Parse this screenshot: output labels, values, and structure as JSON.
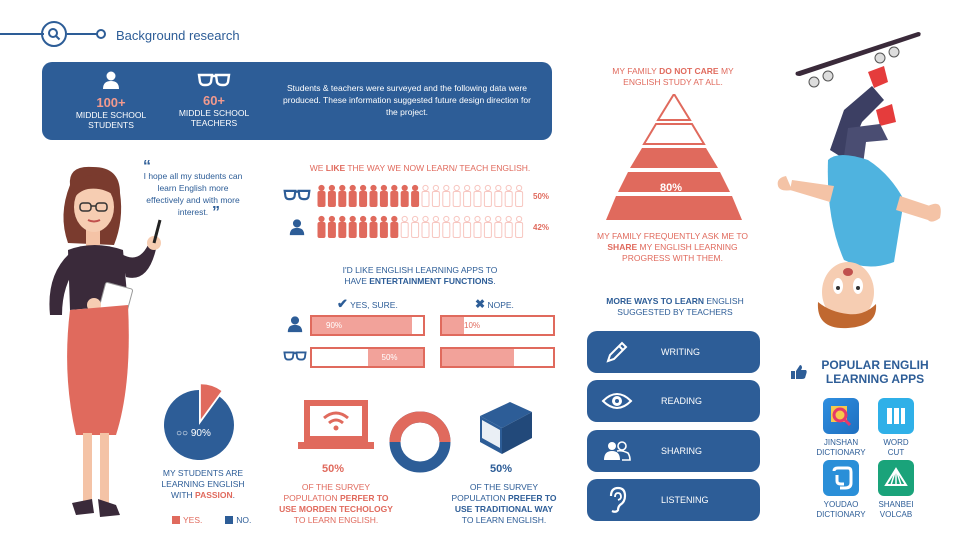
{
  "header": {
    "title": "Background research"
  },
  "banner": {
    "students_count": "100+",
    "students_label_1": "MIDDLE SCHOOL",
    "students_label_2": "STUDENTS",
    "teachers_count": "60+",
    "teachers_label_1": "MIDDLE SCHOOL",
    "teachers_label_2": "TEACHERS",
    "description": "Students & teachers were surveyed and the following data were produced. These information suggested future design direction for the project."
  },
  "quote": {
    "text": "I hope all my students can learn English more effectively and with more interest.",
    "open": "“",
    "close": "”"
  },
  "like": {
    "title_pre": "WE ",
    "title_em": "LIKE",
    "title_post": " THE WAY WE NOW LEARN/ TEACH ENGLISH.",
    "teachers_pct": "50%",
    "students_pct": "42%",
    "teachers_value": 0.5,
    "students_value": 0.42
  },
  "apps_want": {
    "title_1": "I'D LIKE ENGLISH LEARNING APPS TO",
    "title_2_pre": "HAVE ",
    "title_2_em": "ENTERTAINMENT FUNCTIONS",
    "title_2_post": ".",
    "yes_label": "YES, SURE.",
    "no_label": "NOPE.",
    "students_yes": "90%",
    "students_no": "10%",
    "teachers_yes": "50%",
    "teachers_no": "50%",
    "students_yes_value": 0.9,
    "students_no_value": 0.1,
    "teachers_yes_value": 0.5,
    "teachers_no_value": 0.5
  },
  "pie": {
    "percent": "90%",
    "value": 0.9,
    "label_1": "MY STUDENTS ARE",
    "label_2": "LEARNING ENGLISH",
    "label_3_pre": "WITH ",
    "label_3_em": "PASSION",
    "label_3_post": ".",
    "legend_yes": "YES.",
    "legend_no": "NO."
  },
  "computer_stat": {
    "percent": "50%",
    "line_1": "OF THE SURVEY",
    "line_2_pre": "POPULATION ",
    "line_2_em": "PERFER TO",
    "line_3": "USE MORDEN TECHOLOGY",
    "line_4": "TO LEARN ENGLISH."
  },
  "book_stat": {
    "percent": "50%",
    "line_1": "OF THE SURVEY",
    "line_2_pre": "POPULATION ",
    "line_2_em": "PREFER TO",
    "line_3": "USE TRADITIONAL WAY",
    "line_4": "TO LEARN ENGLISH."
  },
  "family": {
    "top_1_pre": "MY FAMILY ",
    "top_1_em": "DO NOT CARE",
    "top_1_post": " MY",
    "top_2": "ENGLISH STUDY AT ALL.",
    "pct": "80%",
    "value": 0.8,
    "bot_1": "MY FAMILY FREQUENTLY ASK ME TO",
    "bot_2_em": "SHARE",
    "bot_2_post": " MY ENGLISH LEARNING",
    "bot_3": "PROGRESS WITH THEM."
  },
  "ways": {
    "title_em": "MORE WAYS TO LEARN",
    "title_post": " ENGLISH",
    "title_2": "SUGGESTED BY TEACHERS",
    "items": [
      {
        "label": "WRITING",
        "icon": "pencil-icon"
      },
      {
        "label": "READING",
        "icon": "eye-icon"
      },
      {
        "label": "SHARING",
        "icon": "people-icon"
      },
      {
        "label": "LISTENING",
        "icon": "ear-icon"
      }
    ]
  },
  "popular": {
    "title_1": "POPULAR ENGLIH",
    "title_2": "LEARNING APPS",
    "apps": [
      {
        "line_1": "JINSHAN",
        "line_2": "DICTIONARY",
        "color": "#2f8fe0"
      },
      {
        "line_1": "WORD",
        "line_2": "CUT",
        "color": "#2fb0e8"
      },
      {
        "line_1": "YOUDAO",
        "line_2": "DICTIONARY",
        "color": "#2a8fd8"
      },
      {
        "line_1": "SHANBEI",
        "line_2": "VOLCAB",
        "color": "#1aa37a"
      }
    ]
  },
  "colors": {
    "blue": "#2d5d97",
    "red": "#e06a5d",
    "light_red": "#f2a29a"
  }
}
